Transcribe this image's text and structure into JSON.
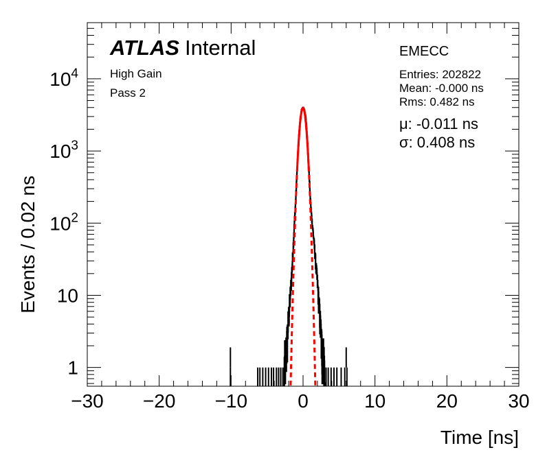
{
  "chart_data": {
    "type": "histogram",
    "xlabel": "Time [ns]",
    "ylabel": "Events / 0.02 ns",
    "xlim": [
      -30,
      30
    ],
    "ylim": [
      0.55,
      60000
    ],
    "yscale": "log",
    "bin_width": 0.02,
    "x_ticks": [
      {
        "value": -30,
        "label": "−30"
      },
      {
        "value": -20,
        "label": "−20"
      },
      {
        "value": -10,
        "label": "−10"
      },
      {
        "value": 0,
        "label": "0"
      },
      {
        "value": 10,
        "label": "10"
      },
      {
        "value": 20,
        "label": "20"
      },
      {
        "value": 30,
        "label": "30"
      }
    ],
    "y_ticks": [
      {
        "value": 1,
        "base": "1",
        "exp": ""
      },
      {
        "value": 10,
        "base": "10",
        "exp": ""
      },
      {
        "value": 100,
        "base": "10",
        "exp": "2"
      },
      {
        "value": 1000,
        "base": "10",
        "exp": "3"
      },
      {
        "value": 10000,
        "base": "10",
        "exp": "4"
      }
    ],
    "labels": {
      "atlas": "ATLAS",
      "internal": "Internal",
      "gain": "High Gain",
      "pass": "Pass 2",
      "region": "EMECC"
    },
    "stats": {
      "entries": "Entries: 202822",
      "mean": "Mean: -0.000 ns",
      "rms": "Rms: 0.482 ns"
    },
    "fit": {
      "mu_text": "μ: -0.011 ns",
      "sigma_text": "σ: 0.408 ns",
      "mu": -0.011,
      "sigma": 0.408,
      "amplitude": 3950,
      "color": "#ff0000"
    },
    "histogram_envelope": {
      "x": [
        -2.6,
        -2.4,
        -2.2,
        -2.0,
        -1.8,
        -1.6,
        -1.4,
        -1.2,
        -1.0,
        -0.8,
        -0.6,
        -0.4,
        -0.2,
        0.0,
        0.2,
        0.4,
        0.6,
        0.8,
        1.0,
        1.2,
        1.4,
        1.6,
        1.8,
        2.0,
        2.2,
        2.4,
        2.6,
        2.8,
        3.0
      ],
      "y": [
        1,
        1.5,
        2.5,
        5,
        9,
        18,
        40,
        100,
        230,
        620,
        1500,
        2750,
        3700,
        4000,
        3700,
        2800,
        1500,
        600,
        230,
        120,
        75,
        45,
        25,
        15,
        8,
        4,
        2,
        1.5,
        1
      ]
    },
    "outlier_spikes": [
      -10.1,
      -6.3,
      -6.0,
      -5.6,
      -5.2,
      -4.8,
      -4.4,
      -4.1,
      -3.7,
      -3.4,
      -3.1,
      -2.8,
      2.9,
      3.2,
      3.5,
      3.9,
      4.3,
      4.7,
      5.3,
      5.8,
      6.1
    ],
    "histogram_color": "#000000"
  }
}
